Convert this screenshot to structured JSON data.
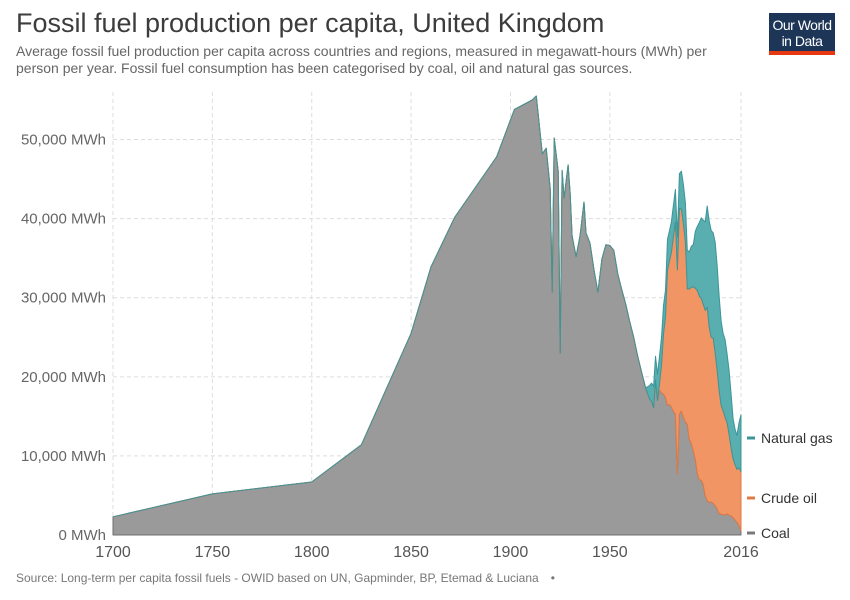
{
  "title": "Fossil fuel production per capita, United Kingdom",
  "subtitle": "Average fossil fuel production per capita across countries and regions, measured in megawatt-hours (MWh) per person per year. Fossil fuel consumption has been categorised by coal, oil and natural gas sources.",
  "logo": {
    "line1": "Our World",
    "line2": "in Data"
  },
  "source": "Source: Long-term per capita fossil fuels - OWID based on UN, Gapminder, BP, Etemad & Luciana",
  "colors": {
    "coal": "#9a9a9a",
    "oil": "#f29565",
    "gas": "#59aeb0",
    "brand": "#1d3557",
    "brand_accent": "#e63912"
  },
  "chart_data": {
    "type": "area",
    "stacked": true,
    "xlim": [
      1700,
      2016
    ],
    "ylim": [
      0,
      55000
    ],
    "x_ticks": [
      "1700",
      "1750",
      "1800",
      "1850",
      "1900",
      "1950",
      "2016"
    ],
    "x_tick_values": [
      1700,
      1750,
      1800,
      1850,
      1900,
      1950,
      2016
    ],
    "y_ticks": [
      "0 MWh",
      "10,000 MWh",
      "20,000 MWh",
      "30,000 MWh",
      "40,000 MWh",
      "50,000 MWh"
    ],
    "y_tick_values": [
      0,
      10000,
      20000,
      30000,
      40000,
      50000
    ],
    "grid": true,
    "legend_placement": "right-end",
    "x": [
      1700,
      1750,
      1800,
      1825,
      1850,
      1860,
      1872,
      1893,
      1902,
      1911,
      1913,
      1916,
      1918,
      1920,
      1921,
      1922,
      1924,
      1925,
      1926,
      1927,
      1929,
      1930,
      1931,
      1933,
      1935,
      1937,
      1938,
      1940,
      1942,
      1944,
      1946,
      1948,
      1950,
      1952,
      1954,
      1956,
      1958,
      1960,
      1962,
      1964,
      1966,
      1968,
      1970,
      1971,
      1972,
      1973,
      1974,
      1975,
      1976,
      1977,
      1978,
      1979,
      1980,
      1981,
      1982,
      1983,
      1984,
      1985,
      1986,
      1987,
      1988,
      1989,
      1990,
      1991,
      1992,
      1993,
      1994,
      1995,
      1996,
      1997,
      1998,
      1999,
      2000,
      2001,
      2002,
      2003,
      2004,
      2005,
      2006,
      2007,
      2008,
      2009,
      2010,
      2011,
      2012,
      2013,
      2014,
      2015,
      2016
    ],
    "series": [
      {
        "name": "Coal",
        "values": [
          2300,
          5200,
          6700,
          11400,
          25500,
          33900,
          40200,
          47800,
          53800,
          55000,
          55500,
          48200,
          48900,
          43800,
          30700,
          50200,
          46000,
          23000,
          46100,
          42600,
          46800,
          43300,
          37800,
          35200,
          37800,
          42100,
          38200,
          36900,
          33600,
          30700,
          34900,
          36700,
          36600,
          36000,
          33000,
          31000,
          29200,
          27000,
          25000,
          22600,
          20600,
          18600,
          17200,
          16900,
          16100,
          19600,
          17000,
          18300,
          18000,
          17800,
          17400,
          16400,
          16500,
          16200,
          15600,
          15300,
          7700,
          15300,
          15700,
          14900,
          14300,
          14000,
          12100,
          11600,
          10600,
          9600,
          7800,
          7000,
          6900,
          6400,
          5000,
          4400,
          4100,
          4200,
          4000,
          3700,
          3300,
          2700,
          2600,
          2600,
          2500,
          2700,
          2500,
          2400,
          2200,
          1900,
          1600,
          1200,
          500
        ]
      },
      {
        "name": "Crude oil",
        "values": [
          0,
          0,
          0,
          0,
          0,
          0,
          0,
          0,
          0,
          0,
          0,
          0,
          0,
          0,
          0,
          0,
          0,
          0,
          0,
          0,
          0,
          0,
          0,
          0,
          0,
          0,
          0,
          0,
          0,
          0,
          0,
          0,
          0,
          0,
          0,
          0,
          0,
          0,
          0,
          0,
          0,
          0,
          0,
          0,
          0,
          0,
          0,
          800,
          3500,
          7600,
          10200,
          17100,
          18200,
          19500,
          22100,
          24300,
          25800,
          26000,
          25500,
          24400,
          22800,
          17100,
          19000,
          19700,
          20800,
          21600,
          23100,
          23200,
          23000,
          22800,
          23400,
          24400,
          22200,
          20800,
          20900,
          19300,
          17500,
          15600,
          13800,
          13100,
          12400,
          11500,
          10200,
          8600,
          7400,
          7000,
          6700,
          7300,
          7500
        ]
      },
      {
        "name": "Natural gas",
        "values": [
          0,
          0,
          0,
          0,
          0,
          0,
          0,
          0,
          0,
          0,
          0,
          0,
          0,
          0,
          0,
          0,
          0,
          0,
          0,
          0,
          0,
          0,
          0,
          0,
          0,
          0,
          0,
          0,
          0,
          0,
          0,
          0,
          0,
          0,
          0,
          0,
          0,
          0,
          0,
          0,
          0,
          0,
          1700,
          2300,
          2700,
          3000,
          3300,
          3500,
          3500,
          3600,
          3400,
          3900,
          3800,
          3900,
          4000,
          4100,
          4200,
          4400,
          4800,
          5000,
          4900,
          4900,
          4700,
          5200,
          5300,
          7200,
          8100,
          9300,
          10200,
          10600,
          11200,
          12800,
          13400,
          13500,
          13300,
          14000,
          13200,
          12000,
          10700,
          9800,
          9800,
          8700,
          8100,
          6800,
          5100,
          4500,
          4300,
          5700,
          7200
        ]
      }
    ]
  }
}
